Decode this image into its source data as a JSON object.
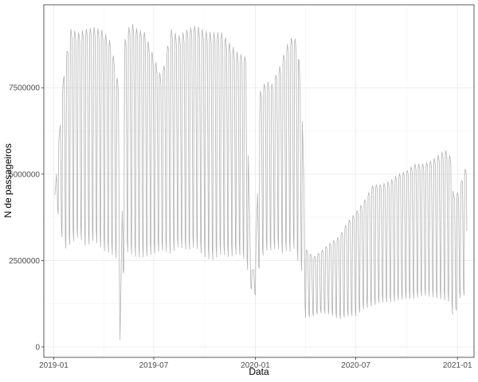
{
  "chart_data": {
    "type": "line",
    "xlabel": "Data",
    "ylabel": "N de passageiros",
    "x_tick_labels": [
      "2019-01",
      "2019-07",
      "2020-01",
      "2020-07",
      "2021-01"
    ],
    "x_tick_dates": [
      "2019-01-01",
      "2019-07-01",
      "2020-01-01",
      "2020-07-01",
      "2021-01-01"
    ],
    "y_tick_labels": [
      "0",
      "2500000",
      "5000000",
      "7500000"
    ],
    "y_ticks": [
      0,
      2500000,
      5000000,
      7500000
    ],
    "xlim": [
      "2018-12-14",
      "2021-01-31"
    ],
    "ylim": [
      -300000,
      9900000
    ],
    "grid": true,
    "background": "#ffffff",
    "line_color": "#b3b3b3",
    "grid_major_color": "#ebebeb",
    "grid_minor_color": "#f5f5f5",
    "panel_border_color": "#333333",
    "series": [
      {
        "x": [
          "2019-01-03",
          "2019-01-20",
          "2019-02-01",
          "2019-02-15",
          "2019-03-01",
          "2019-03-15",
          "2019-04-01",
          "2019-04-15",
          "2019-04-29",
          "2019-05-01",
          "2019-05-10",
          "2019-05-20",
          "2019-06-01",
          "2019-06-15",
          "2019-07-01",
          "2019-07-15",
          "2019-08-01",
          "2019-08-15",
          "2019-09-01",
          "2019-09-15",
          "2019-10-01",
          "2019-10-15",
          "2019-11-01",
          "2019-11-15",
          "2019-12-01",
          "2019-12-15",
          "2019-12-24",
          "2020-01-01",
          "2020-01-10",
          "2020-01-20",
          "2020-02-01",
          "2020-02-10",
          "2020-02-17",
          "2020-02-25",
          "2020-03-01",
          "2020-03-10",
          "2020-03-18",
          "2020-03-25",
          "2020-04-01",
          "2020-04-15",
          "2020-05-01",
          "2020-05-15",
          "2020-06-01",
          "2020-06-15",
          "2020-07-01",
          "2020-07-15",
          "2020-08-01",
          "2020-08-15",
          "2020-09-01",
          "2020-09-15",
          "2020-10-01",
          "2020-10-15",
          "2020-11-01",
          "2020-11-15",
          "2020-12-01",
          "2020-12-10",
          "2020-12-20",
          "2020-12-25",
          "2021-01-04",
          "2021-01-12",
          "2021-01-18"
        ],
        "hi": [
          4400000,
          8100000,
          9200000,
          9100000,
          9200000,
          9250000,
          9150000,
          8800000,
          7500000,
          200000,
          8900000,
          9400000,
          9200000,
          9100000,
          8400000,
          7800000,
          9200000,
          9000000,
          9200000,
          9300000,
          9150000,
          9100000,
          9100000,
          8800000,
          8500000,
          8400000,
          2200000,
          2300000,
          7400000,
          7700000,
          7600000,
          8000000,
          8200000,
          8700000,
          8800000,
          9050000,
          8700000,
          7300000,
          2850000,
          2600000,
          2800000,
          3000000,
          3200000,
          3600000,
          3900000,
          4200000,
          4700000,
          4700000,
          4800000,
          5000000,
          5100000,
          5300000,
          5300000,
          5400000,
          5600000,
          5700000,
          5500000,
          4400000,
          4500000,
          5100000,
          5200000
        ],
        "lo": [
          4400000,
          2800000,
          3000000,
          3200000,
          2900000,
          3100000,
          2800000,
          2700000,
          2500000,
          200000,
          2800000,
          2700000,
          2600000,
          2600000,
          2700000,
          2800000,
          2700000,
          2900000,
          2800000,
          2900000,
          2600000,
          2500000,
          2700000,
          2600000,
          2700000,
          2500000,
          1700000,
          1500000,
          2500000,
          2800000,
          2800000,
          2900000,
          2700000,
          2800000,
          2700000,
          2900000,
          2500000,
          2200000,
          850000,
          900000,
          1000000,
          950000,
          800000,
          900000,
          900000,
          1100000,
          1200000,
          1300000,
          1300000,
          1350000,
          1400000,
          1400000,
          1500000,
          1450000,
          1400000,
          1350000,
          1300000,
          700000,
          1400000,
          1500000,
          1500000
        ]
      }
    ]
  }
}
